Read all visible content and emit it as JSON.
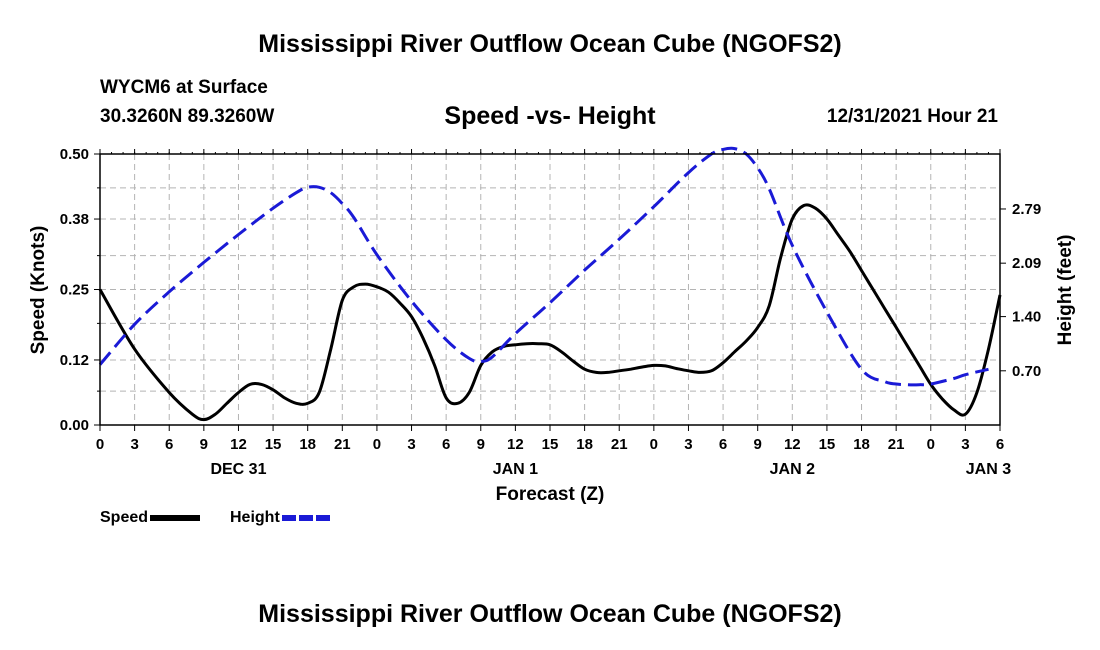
{
  "page": {
    "title": "Mississippi River Outflow Ocean Cube (NGOFS2)",
    "bottom_title": "Mississippi River Outflow Ocean Cube (NGOFS2)"
  },
  "station": {
    "name": "WYCM6 at Surface",
    "coords": "30.3260N  89.3260W"
  },
  "chart_data": {
    "type": "line",
    "title": "Speed -vs- Height",
    "datetime": "12/31/2021 Hour 21",
    "xlabel": "Forecast (Z)",
    "ylabel_left": "Speed (Knots)",
    "ylabel_right": "Height (feet)",
    "x_range_hours": [
      0,
      78
    ],
    "x_ticks": [
      {
        "h": 0,
        "label": "0"
      },
      {
        "h": 3,
        "label": "3"
      },
      {
        "h": 6,
        "label": "6"
      },
      {
        "h": 9,
        "label": "9"
      },
      {
        "h": 12,
        "label": "12"
      },
      {
        "h": 15,
        "label": "15"
      },
      {
        "h": 18,
        "label": "18"
      },
      {
        "h": 21,
        "label": "21"
      },
      {
        "h": 24,
        "label": "0"
      },
      {
        "h": 27,
        "label": "3"
      },
      {
        "h": 30,
        "label": "6"
      },
      {
        "h": 33,
        "label": "9"
      },
      {
        "h": 36,
        "label": "12"
      },
      {
        "h": 39,
        "label": "15"
      },
      {
        "h": 42,
        "label": "18"
      },
      {
        "h": 45,
        "label": "21"
      },
      {
        "h": 48,
        "label": "0"
      },
      {
        "h": 51,
        "label": "3"
      },
      {
        "h": 54,
        "label": "6"
      },
      {
        "h": 57,
        "label": "9"
      },
      {
        "h": 60,
        "label": "12"
      },
      {
        "h": 63,
        "label": "15"
      },
      {
        "h": 66,
        "label": "18"
      },
      {
        "h": 69,
        "label": "21"
      },
      {
        "h": 72,
        "label": "0"
      },
      {
        "h": 75,
        "label": "3"
      },
      {
        "h": 78,
        "label": "6"
      }
    ],
    "day_labels": [
      {
        "h": 12,
        "label": "DEC 31"
      },
      {
        "h": 36,
        "label": "JAN 1"
      },
      {
        "h": 60,
        "label": "JAN 2"
      },
      {
        "h": 77,
        "label": "JAN 3"
      }
    ],
    "y_left": {
      "min": 0,
      "max": 0.5,
      "ticks": [
        "0.00",
        "0.12",
        "0.25",
        "0.38",
        "0.50"
      ]
    },
    "y_right": {
      "min": 0.0,
      "max": 3.5,
      "ticks": [
        "0.70",
        "1.40",
        "2.09",
        "2.79"
      ]
    },
    "series": [
      {
        "name": "Speed",
        "axis": "left",
        "color": "#000000",
        "dash": "solid",
        "x": [
          0,
          3,
          6,
          8,
          9,
          10,
          11,
          12,
          13,
          14,
          15,
          16,
          17,
          18,
          19,
          20,
          21,
          22,
          23,
          24,
          25,
          26,
          27,
          28,
          29,
          30,
          31,
          32,
          33,
          34,
          35,
          36,
          37,
          38,
          39,
          40,
          41,
          42,
          43,
          44,
          45,
          46,
          47,
          48,
          49,
          50,
          51,
          52,
          53,
          54,
          55,
          56,
          57,
          58,
          59,
          60,
          61,
          62,
          63,
          64,
          65,
          66,
          67,
          68,
          69,
          70,
          71,
          72,
          73,
          74,
          75,
          76,
          77,
          78
        ],
        "values": [
          0.25,
          0.14,
          0.06,
          0.02,
          0.01,
          0.02,
          0.04,
          0.06,
          0.075,
          0.075,
          0.065,
          0.05,
          0.04,
          0.04,
          0.06,
          0.14,
          0.23,
          0.255,
          0.26,
          0.255,
          0.245,
          0.225,
          0.2,
          0.16,
          0.11,
          0.05,
          0.04,
          0.06,
          0.11,
          0.135,
          0.145,
          0.148,
          0.15,
          0.15,
          0.148,
          0.135,
          0.118,
          0.103,
          0.097,
          0.097,
          0.1,
          0.103,
          0.107,
          0.11,
          0.109,
          0.104,
          0.1,
          0.097,
          0.1,
          0.115,
          0.135,
          0.155,
          0.18,
          0.22,
          0.31,
          0.38,
          0.405,
          0.4,
          0.38,
          0.35,
          0.32,
          0.285,
          0.25,
          0.215,
          0.18,
          0.145,
          0.11,
          0.075,
          0.048,
          0.028,
          0.02,
          0.06,
          0.14,
          0.24
        ]
      },
      {
        "name": "Height",
        "axis": "right",
        "color": "#1a1ad6",
        "dash": "dashed",
        "x": [
          0,
          3,
          6,
          9,
          12,
          15,
          17,
          18,
          19,
          20,
          21,
          22,
          24,
          27,
          30,
          32,
          33,
          34,
          36,
          39,
          42,
          45,
          48,
          51,
          53,
          54,
          55,
          56,
          57,
          58,
          60,
          63,
          66,
          68,
          69,
          70,
          71,
          72,
          74,
          75,
          77
        ],
        "values": [
          0.78,
          1.3,
          1.72,
          2.1,
          2.46,
          2.8,
          3.0,
          3.07,
          3.07,
          3.0,
          2.86,
          2.68,
          2.2,
          1.6,
          1.1,
          0.86,
          0.82,
          0.88,
          1.18,
          1.58,
          2.0,
          2.4,
          2.82,
          3.26,
          3.5,
          3.56,
          3.57,
          3.5,
          3.32,
          3.05,
          2.32,
          1.46,
          0.72,
          0.56,
          0.53,
          0.52,
          0.52,
          0.53,
          0.6,
          0.65,
          0.72
        ]
      }
    ],
    "legend": [
      {
        "label": "Speed",
        "color": "#000000",
        "dash": "solid"
      },
      {
        "label": "Height",
        "color": "#1a1ad6",
        "dash": "dashed"
      }
    ]
  }
}
